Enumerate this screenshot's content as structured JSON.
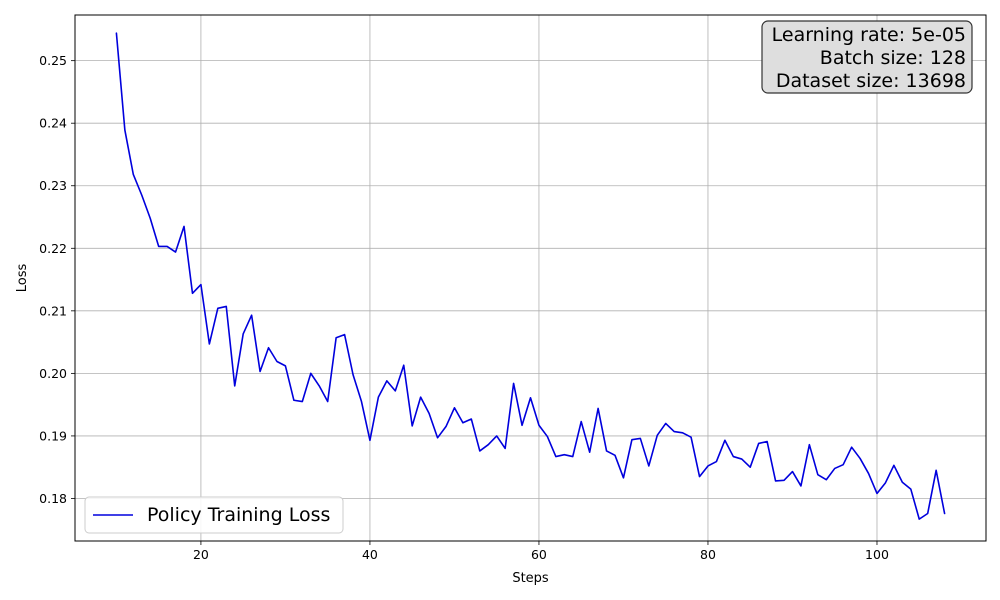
{
  "chart_data": {
    "type": "line",
    "title": "",
    "xlabel": "Steps",
    "ylabel": "Loss",
    "xlim": [
      5.1,
      112.9
    ],
    "ylim": [
      0.1732,
      0.2573
    ],
    "xticks": [
      20,
      40,
      60,
      80,
      100
    ],
    "yticks": [
      0.18,
      0.19,
      0.2,
      0.21,
      0.22,
      0.23,
      0.24,
      0.25
    ],
    "ytick_labels": [
      "0.18",
      "0.19",
      "0.20",
      "0.21",
      "0.22",
      "0.23",
      "0.24",
      "0.25"
    ],
    "grid": true,
    "legend": "lower-left",
    "annotation": {
      "lines": [
        "Learning rate: 5e-05",
        "Batch size: 128",
        "Dataset size: 13698"
      ],
      "position": "top-right"
    },
    "series": [
      {
        "name": "Policy Training Loss",
        "color": "#0000dd",
        "x": [
          10,
          11,
          12,
          13,
          14,
          15,
          16,
          17,
          18,
          19,
          20,
          21,
          22,
          23,
          24,
          25,
          26,
          27,
          28,
          29,
          30,
          31,
          32,
          33,
          34,
          35,
          36,
          37,
          38,
          39,
          40,
          41,
          42,
          43,
          44,
          45,
          46,
          47,
          48,
          49,
          50,
          51,
          52,
          53,
          54,
          55,
          56,
          57,
          58,
          59,
          60,
          61,
          62,
          63,
          64,
          65,
          66,
          67,
          68,
          69,
          70,
          71,
          72,
          73,
          74,
          75,
          76,
          77,
          78,
          79,
          80,
          81,
          82,
          83,
          84,
          85,
          86,
          87,
          88,
          89,
          90,
          91,
          92,
          93,
          94,
          95,
          96,
          97,
          98,
          99,
          100,
          101,
          102,
          103,
          104,
          105,
          106,
          107,
          108
        ],
        "y": [
          0.2544,
          0.2389,
          0.2318,
          0.2285,
          0.2248,
          0.2203,
          0.2203,
          0.2194,
          0.2235,
          0.2128,
          0.2142,
          0.2047,
          0.2104,
          0.2107,
          0.198,
          0.2063,
          0.2093,
          0.2003,
          0.2041,
          0.2019,
          0.2012,
          0.1957,
          0.1955,
          0.2,
          0.198,
          0.1955,
          0.2057,
          0.2062,
          0.1998,
          0.1955,
          0.1893,
          0.1962,
          0.1988,
          0.1972,
          0.2013,
          0.1916,
          0.1962,
          0.1936,
          0.1897,
          0.1915,
          0.1945,
          0.1921,
          0.1927,
          0.1876,
          0.1886,
          0.19,
          0.188,
          0.1984,
          0.1917,
          0.1961,
          0.1917,
          0.1899,
          0.1867,
          0.187,
          0.1867,
          0.1923,
          0.1874,
          0.1944,
          0.1876,
          0.1869,
          0.1833,
          0.1894,
          0.1896,
          0.1852,
          0.1901,
          0.192,
          0.1907,
          0.1905,
          0.1898,
          0.1835,
          0.1852,
          0.1859,
          0.1893,
          0.1867,
          0.1863,
          0.185,
          0.1888,
          0.1891,
          0.1828,
          0.1829,
          0.1843,
          0.182,
          0.1886,
          0.1838,
          0.183,
          0.1848,
          0.1854,
          0.1882,
          0.1864,
          0.184,
          0.1808,
          0.1825,
          0.1853,
          0.1826,
          0.1815,
          0.1767,
          0.1776,
          0.1845,
          0.1776
        ]
      }
    ]
  }
}
